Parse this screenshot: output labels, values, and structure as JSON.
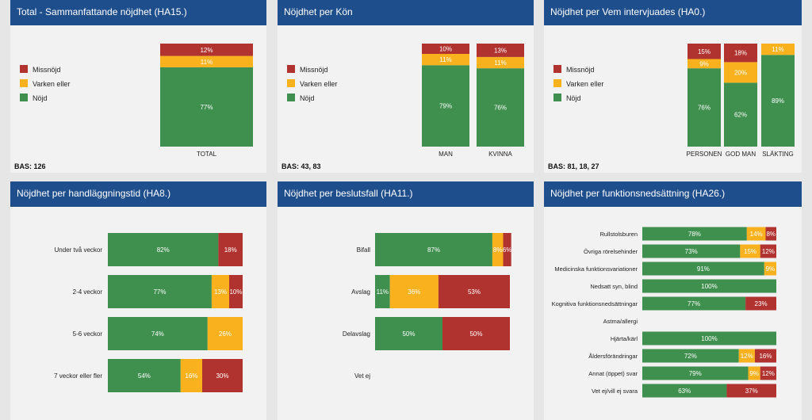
{
  "colors": {
    "green": "#3f8f4f",
    "yellow": "#f9b21d",
    "red": "#b03330",
    "header": "#1f4e8c"
  },
  "chart_data": [
    {
      "type": "bar",
      "orientation": "vertical",
      "stacked": true,
      "title": "Total - Sammanfattande nöjdhet (HA15.)",
      "categories": [
        "TOTAL"
      ],
      "legend": [
        "Missnöjd",
        "Varken eller",
        "Nöjd"
      ],
      "series": [
        {
          "name": "Nöjd",
          "values": [
            77
          ]
        },
        {
          "name": "Varken eller",
          "values": [
            11
          ]
        },
        {
          "name": "Missnöjd",
          "values": [
            12
          ]
        }
      ],
      "bas": "BAS: 126"
    },
    {
      "type": "bar",
      "orientation": "vertical",
      "stacked": true,
      "title": "Nöjdhet per Kön",
      "categories": [
        "MAN",
        "KVINNA"
      ],
      "legend": [
        "Missnöjd",
        "Varken eller",
        "Nöjd"
      ],
      "series": [
        {
          "name": "Nöjd",
          "values": [
            79,
            76
          ]
        },
        {
          "name": "Varken eller",
          "values": [
            11,
            11
          ]
        },
        {
          "name": "Missnöjd",
          "values": [
            10,
            13
          ]
        }
      ],
      "bas": "BAS: 43, 83"
    },
    {
      "type": "bar",
      "orientation": "vertical",
      "stacked": true,
      "title": "Nöjdhet per Vem intervjuades (HA0.)",
      "categories": [
        "PERSONEN",
        "GOD MAN",
        "SLÄKTING"
      ],
      "legend": [
        "Missnöjd",
        "Varken eller",
        "Nöjd"
      ],
      "series": [
        {
          "name": "Nöjd",
          "values": [
            76,
            62,
            89
          ]
        },
        {
          "name": "Varken eller",
          "values": [
            9,
            20,
            11
          ]
        },
        {
          "name": "Missnöjd",
          "values": [
            15,
            18,
            null
          ]
        }
      ],
      "bas": "BAS: 81, 18, 27"
    },
    {
      "type": "bar",
      "orientation": "horizontal",
      "stacked": true,
      "title": "Nöjdhet per handläggningstid (HA8.)",
      "categories": [
        "Under två veckor",
        "2-4 veckor",
        "5-6 veckor",
        "7 veckor eller fler"
      ],
      "series": [
        {
          "name": "Nöjd",
          "values": [
            82,
            77,
            74,
            54
          ]
        },
        {
          "name": "Varken eller",
          "values": [
            null,
            13,
            26,
            16
          ]
        },
        {
          "name": "Missnöjd",
          "values": [
            18,
            10,
            null,
            30
          ]
        }
      ]
    },
    {
      "type": "bar",
      "orientation": "horizontal",
      "stacked": true,
      "title": "Nöjdhet per beslutsfall (HA11.)",
      "categories": [
        "Bifall",
        "Avslag",
        "Delavslag",
        "Vet ej"
      ],
      "series": [
        {
          "name": "Nöjd",
          "values": [
            87,
            11,
            50,
            null
          ]
        },
        {
          "name": "Varken eller",
          "values": [
            8,
            36,
            null,
            null
          ]
        },
        {
          "name": "Missnöjd",
          "values": [
            6,
            53,
            50,
            null
          ]
        }
      ]
    },
    {
      "type": "bar",
      "orientation": "horizontal",
      "stacked": true,
      "title": "Nöjdhet per funktionsnedsättning (HA26.)",
      "categories": [
        "Rullstolsburen",
        "Övriga rörelsehinder",
        "Medicinska funktionsvariationer",
        "Nedsatt syn, blind",
        "Kognitiva funktionsnedsättningar",
        "Astma/allergi",
        "Hjärta/kärl",
        "Åldersförändringar",
        "Annat (öppet) svar",
        "Vet ej/vill ej svara"
      ],
      "series": [
        {
          "name": "Nöjd",
          "values": [
            78,
            73,
            91,
            100,
            77,
            null,
            100,
            72,
            79,
            63
          ]
        },
        {
          "name": "Varken eller",
          "values": [
            14,
            15,
            9,
            null,
            null,
            null,
            null,
            12,
            9,
            null
          ]
        },
        {
          "name": "Missnöjd",
          "values": [
            8,
            12,
            null,
            null,
            23,
            null,
            null,
            16,
            12,
            37
          ]
        }
      ]
    }
  ]
}
